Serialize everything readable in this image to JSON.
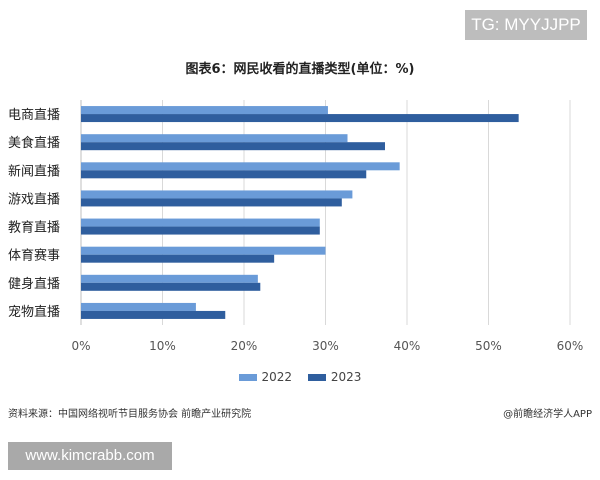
{
  "badges": {
    "tg": "TG: MYYJJPP",
    "url": "www.kimcrabb.com"
  },
  "footer": {
    "source": "资料来源：中国网络视听节目服务协会 前瞻产业研究院",
    "credit": "@前瞻经济学人APP"
  },
  "colors": {
    "series_2022": "#6a9bd8",
    "series_2023": "#2f5e9e",
    "grid": "#d9d9d9",
    "axis_text": "#555555"
  },
  "chart_data": {
    "type": "bar",
    "orientation": "horizontal",
    "title": "图表6：网民收看的直播类型(单位：%)",
    "categories": [
      "电商直播",
      "美食直播",
      "新闻直播",
      "游戏直播",
      "教育直播",
      "体育赛事",
      "健身直播",
      "宠物直播"
    ],
    "series": [
      {
        "name": "2022",
        "values": [
          30.3,
          32.7,
          39.1,
          33.3,
          29.3,
          30.0,
          21.7,
          14.1
        ]
      },
      {
        "name": "2023",
        "values": [
          53.7,
          37.3,
          35.0,
          32.0,
          29.3,
          23.7,
          22.0,
          17.7
        ]
      }
    ],
    "xlim": [
      0,
      60
    ],
    "xticks": [
      "0%",
      "10%",
      "20%",
      "30%",
      "40%",
      "50%",
      "60%"
    ],
    "grid": true,
    "legend_position": "bottom"
  }
}
